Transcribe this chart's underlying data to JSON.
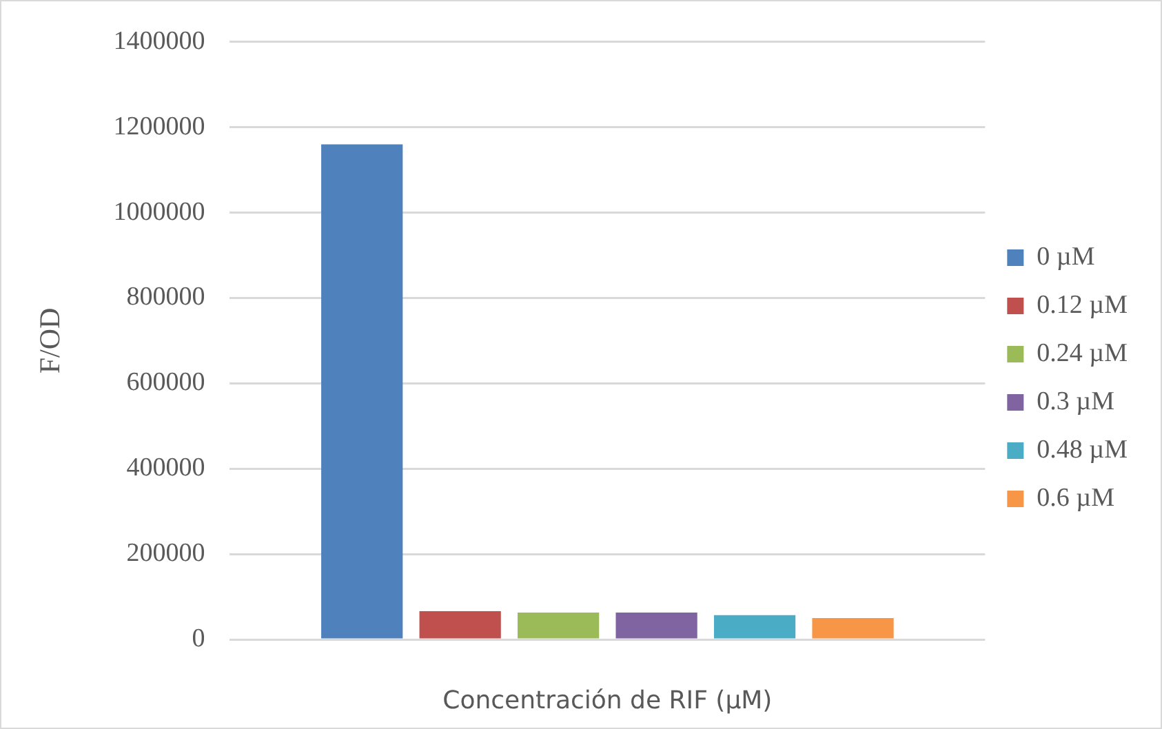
{
  "chart_data": {
    "type": "bar",
    "categories": [
      null
    ],
    "xlabel": "Concentración de RIF (µM)",
    "ylabel": "F/OD",
    "series": [
      {
        "name": "0 µM",
        "color": "#4f81bd",
        "values": [
          1160000
        ]
      },
      {
        "name": "0.12 µM",
        "color": "#c0504d",
        "values": [
          66000
        ]
      },
      {
        "name": "0.24 µM",
        "color": "#9bbb59",
        "values": [
          63000
        ]
      },
      {
        "name": "0.3 µM",
        "color": "#8064a2",
        "values": [
          63000
        ]
      },
      {
        "name": "0.48 µM",
        "color": "#4bacc6",
        "values": [
          57000
        ]
      },
      {
        "name": "0.6 µM",
        "color": "#f79646",
        "values": [
          50000
        ]
      }
    ],
    "ylim": [
      0,
      1400000
    ],
    "yticks": [
      0,
      200000,
      400000,
      600000,
      800000,
      1000000,
      1200000,
      1400000
    ],
    "grid": "y",
    "legend": "right"
  }
}
